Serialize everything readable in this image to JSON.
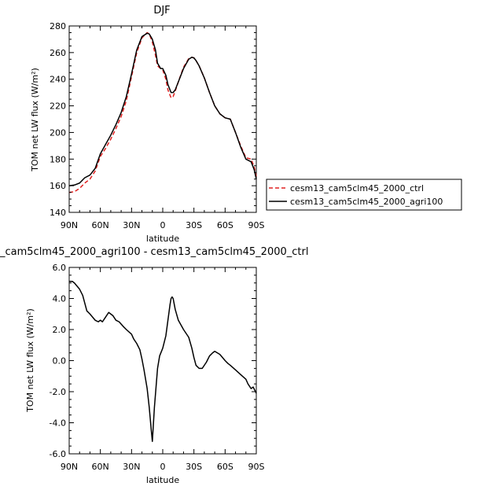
{
  "chart_data": [
    {
      "type": "line",
      "title": "DJF",
      "xlabel": "latitude",
      "ylabel": "TOM net LW flux (W/m²)",
      "xlim": [
        90,
        -90
      ],
      "ylim": [
        140,
        280
      ],
      "x_ticks": [
        90,
        60,
        30,
        0,
        -30,
        -60,
        -90
      ],
      "x_tick_labels": [
        "90N",
        "60N",
        "30N",
        "0",
        "30S",
        "60S",
        "90S"
      ],
      "y_ticks": [
        140,
        160,
        180,
        200,
        220,
        240,
        260,
        280
      ],
      "y_tick_labels": [
        "140",
        "160",
        "180",
        "200",
        "220",
        "240",
        "260",
        "280"
      ],
      "legend": "right",
      "series": [
        {
          "name": "cesm13_cam5clm45_2000_ctrl",
          "color": "#e02020",
          "dash": "dashed",
          "x": [
            90,
            85,
            80,
            75,
            70,
            65,
            60,
            55,
            50,
            45,
            40,
            35,
            30,
            25,
            20,
            15,
            13,
            10,
            7,
            5,
            2,
            0,
            -3,
            -5,
            -8,
            -10,
            -12,
            -15,
            -20,
            -25,
            -28,
            -30,
            -32,
            -35,
            -40,
            -45,
            -50,
            -55,
            -60,
            -65,
            -70,
            -75,
            -80,
            -85,
            -88,
            -90
          ],
          "y": [
            155,
            155.5,
            158,
            162,
            165,
            171,
            182,
            188,
            195,
            203,
            212,
            224,
            242,
            260,
            271,
            275,
            274,
            268,
            258,
            250,
            248,
            247,
            240,
            232,
            226,
            227,
            231,
            238,
            249,
            255.5,
            256.5,
            256,
            254,
            250,
            241,
            230,
            220,
            214,
            211,
            210,
            200,
            190,
            181,
            180,
            174,
            167
          ]
        },
        {
          "name": "cesm13_cam5clm45_2000_agri100",
          "color": "#000000",
          "dash": "solid",
          "x": [
            90,
            85,
            80,
            75,
            70,
            65,
            60,
            55,
            50,
            45,
            40,
            35,
            30,
            25,
            20,
            15,
            13,
            10,
            7,
            5,
            2,
            0,
            -3,
            -5,
            -8,
            -10,
            -12,
            -15,
            -20,
            -25,
            -28,
            -30,
            -32,
            -35,
            -40,
            -45,
            -50,
            -55,
            -60,
            -65,
            -70,
            -75,
            -80,
            -85,
            -88,
            -90
          ],
          "y": [
            160,
            160.5,
            162,
            166,
            168,
            173,
            184,
            191,
            198,
            206,
            215,
            227,
            244,
            262,
            272,
            274.5,
            274,
            270,
            262,
            252,
            248,
            248,
            243,
            236,
            230,
            230,
            232,
            238,
            248,
            255,
            256.5,
            256,
            254,
            250,
            241,
            230,
            220,
            214,
            211,
            210,
            200,
            189,
            180,
            178,
            172,
            165
          ]
        }
      ]
    },
    {
      "type": "line",
      "title": "_cam5clm45_2000_agri100 - cesm13_cam5clm45_2000_ctrl",
      "xlabel": "latitude",
      "ylabel": "TOM net LW flux (W/m²)",
      "xlim": [
        90,
        -90
      ],
      "ylim": [
        -6,
        6
      ],
      "x_ticks": [
        90,
        60,
        30,
        0,
        -30,
        -60,
        -90
      ],
      "x_tick_labels": [
        "90N",
        "60N",
        "30N",
        "0",
        "30S",
        "60S",
        "90S"
      ],
      "y_ticks": [
        6,
        4,
        2,
        0,
        -2,
        -4,
        -6
      ],
      "y_tick_labels": [
        "6.0",
        "4.0",
        "2.0",
        "0.0",
        "-2.0",
        "-4.0",
        "-6.0"
      ],
      "series": [
        {
          "color": "#000000",
          "x": [
            90,
            87,
            85,
            80,
            77,
            73,
            70,
            65,
            62,
            60,
            58,
            55,
            52,
            48,
            45,
            42,
            38,
            35,
            30,
            28,
            25,
            22,
            20,
            18,
            15,
            13,
            11,
            10,
            8,
            5,
            3,
            0,
            -3,
            -5,
            -7,
            -8,
            -9,
            -10,
            -12,
            -15,
            -20,
            -25,
            -28,
            -30,
            -32,
            -35,
            -38,
            -42,
            -45,
            -48,
            -50,
            -55,
            -60,
            -63,
            -65,
            -70,
            -75,
            -80,
            -82,
            -85,
            -87,
            -90
          ],
          "y": [
            5.1,
            5.1,
            5.0,
            4.6,
            4.2,
            3.2,
            3.0,
            2.6,
            2.5,
            2.6,
            2.5,
            2.8,
            3.1,
            2.9,
            2.6,
            2.5,
            2.2,
            2.0,
            1.7,
            1.4,
            1.1,
            0.7,
            0.1,
            -0.6,
            -1.8,
            -3.0,
            -4.5,
            -5.2,
            -3.0,
            -0.5,
            0.3,
            0.8,
            1.6,
            2.6,
            3.6,
            4.0,
            4.1,
            4.0,
            3.3,
            2.6,
            2.0,
            1.5,
            0.8,
            0.2,
            -0.3,
            -0.5,
            -0.5,
            -0.1,
            0.3,
            0.5,
            0.6,
            0.4,
            0.0,
            -0.2,
            -0.3,
            -0.6,
            -0.9,
            -1.2,
            -1.5,
            -1.8,
            -1.7,
            -2.1
          ]
        }
      ]
    }
  ]
}
